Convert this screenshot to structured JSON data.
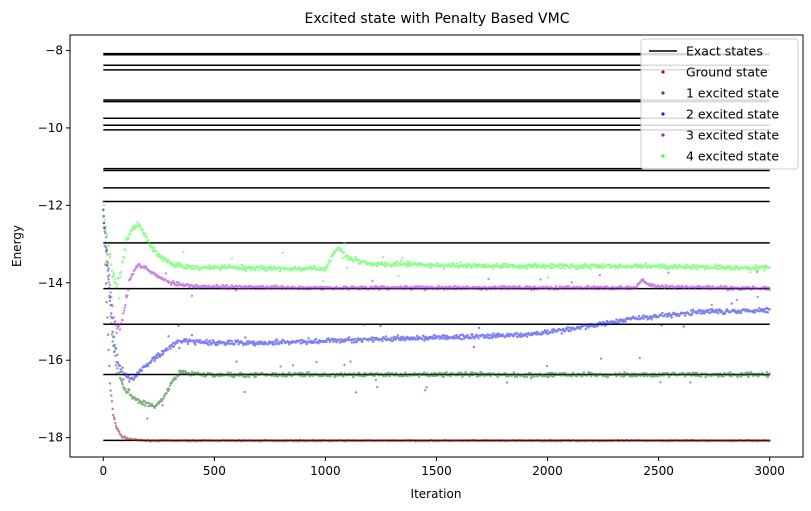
{
  "chart_data": {
    "type": "scatter",
    "title": "Excited state with Penalty Based VMC",
    "xlabel": "Iteration",
    "ylabel": "Energy",
    "xlim": [
      -150,
      3150
    ],
    "ylim": [
      -18.5,
      -7.6
    ],
    "xticks": [
      0,
      500,
      1000,
      1500,
      2000,
      2500,
      3000
    ],
    "xtick_labels": [
      "0",
      "500",
      "1000",
      "1500",
      "2000",
      "2500",
      "3000"
    ],
    "yticks": [
      -18,
      -16,
      -14,
      -12,
      -10,
      -8
    ],
    "ytick_labels": [
      "−18",
      "−16",
      "−14",
      "−12",
      "−10",
      "−8"
    ],
    "grid": false,
    "legend_position": "top-right",
    "exact_states": {
      "name": "Exact states",
      "color": "#000000",
      "x_range": [
        0,
        3000
      ],
      "levels": [
        -8.08,
        -8.11,
        -8.38,
        -8.5,
        -9.28,
        -9.32,
        -9.75,
        -9.93,
        -10.05,
        -11.05,
        -11.1,
        -11.55,
        -11.9,
        -12.97,
        -14.15,
        -15.07,
        -16.37,
        -18.07
      ]
    },
    "series": [
      {
        "name": "Ground state",
        "color": "#8b1a1a",
        "points": [
          [
            0,
            -12.1
          ],
          [
            15,
            -14.5
          ],
          [
            30,
            -16.6
          ],
          [
            45,
            -17.4
          ],
          [
            60,
            -17.75
          ],
          [
            80,
            -17.95
          ],
          [
            100,
            -18.02
          ],
          [
            150,
            -18.06
          ],
          [
            200,
            -18.08
          ],
          [
            500,
            -18.08
          ],
          [
            1000,
            -18.08
          ],
          [
            1500,
            -18.08
          ],
          [
            2000,
            -18.08
          ],
          [
            2500,
            -18.08
          ],
          [
            3000,
            -18.08
          ]
        ]
      },
      {
        "name": "1 excited state",
        "color": "#1e6b1e",
        "points": [
          [
            0,
            -12.2
          ],
          [
            20,
            -13.8
          ],
          [
            40,
            -15.3
          ],
          [
            60,
            -16.2
          ],
          [
            90,
            -16.7
          ],
          [
            130,
            -16.95
          ],
          [
            180,
            -17.1
          ],
          [
            230,
            -17.2
          ],
          [
            270,
            -17.0
          ],
          [
            310,
            -16.55
          ],
          [
            350,
            -16.3
          ],
          [
            400,
            -16.35
          ],
          [
            500,
            -16.38
          ],
          [
            800,
            -16.37
          ],
          [
            1000,
            -16.38
          ],
          [
            1500,
            -16.37
          ],
          [
            2000,
            -16.38
          ],
          [
            2500,
            -16.37
          ],
          [
            3000,
            -16.37
          ]
        ]
      },
      {
        "name": "2 excited state",
        "color": "#1a1aee",
        "points": [
          [
            0,
            -12.3
          ],
          [
            20,
            -13.6
          ],
          [
            40,
            -15.1
          ],
          [
            60,
            -15.9
          ],
          [
            80,
            -16.3
          ],
          [
            110,
            -16.5
          ],
          [
            140,
            -16.45
          ],
          [
            180,
            -16.2
          ],
          [
            230,
            -15.95
          ],
          [
            280,
            -15.75
          ],
          [
            330,
            -15.55
          ],
          [
            380,
            -15.5
          ],
          [
            500,
            -15.55
          ],
          [
            700,
            -15.55
          ],
          [
            1000,
            -15.5
          ],
          [
            1300,
            -15.45
          ],
          [
            1600,
            -15.4
          ],
          [
            1900,
            -15.35
          ],
          [
            2100,
            -15.2
          ],
          [
            2300,
            -15.0
          ],
          [
            2500,
            -14.85
          ],
          [
            2700,
            -14.75
          ],
          [
            3000,
            -14.7
          ]
        ]
      },
      {
        "name": "3 excited state",
        "color": "#a020d0",
        "points": [
          [
            0,
            -12.2
          ],
          [
            20,
            -13.4
          ],
          [
            40,
            -14.6
          ],
          [
            60,
            -15.2
          ],
          [
            80,
            -15.1
          ],
          [
            100,
            -14.5
          ],
          [
            120,
            -13.9
          ],
          [
            150,
            -13.55
          ],
          [
            190,
            -13.6
          ],
          [
            240,
            -13.8
          ],
          [
            300,
            -14.0
          ],
          [
            400,
            -14.1
          ],
          [
            700,
            -14.12
          ],
          [
            1000,
            -14.13
          ],
          [
            1500,
            -14.13
          ],
          [
            2000,
            -14.13
          ],
          [
            2400,
            -14.13
          ],
          [
            2430,
            -13.9
          ],
          [
            2450,
            -14.05
          ],
          [
            2500,
            -14.1
          ],
          [
            3000,
            -14.15
          ]
        ]
      },
      {
        "name": "4 excited state",
        "color": "#33ff33",
        "points": [
          [
            0,
            -12.1
          ],
          [
            20,
            -12.9
          ],
          [
            40,
            -13.7
          ],
          [
            60,
            -14.1
          ],
          [
            80,
            -13.7
          ],
          [
            100,
            -13.0
          ],
          [
            130,
            -12.6
          ],
          [
            160,
            -12.5
          ],
          [
            190,
            -12.8
          ],
          [
            220,
            -13.1
          ],
          [
            260,
            -13.35
          ],
          [
            320,
            -13.55
          ],
          [
            400,
            -13.6
          ],
          [
            700,
            -13.62
          ],
          [
            1000,
            -13.65
          ],
          [
            1040,
            -13.2
          ],
          [
            1060,
            -13.1
          ],
          [
            1100,
            -13.35
          ],
          [
            1200,
            -13.5
          ],
          [
            1500,
            -13.55
          ],
          [
            2000,
            -13.57
          ],
          [
            2500,
            -13.58
          ],
          [
            3000,
            -13.62
          ]
        ]
      }
    ]
  }
}
